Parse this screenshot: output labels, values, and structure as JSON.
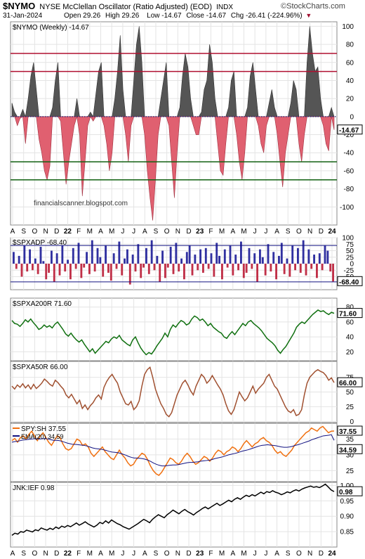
{
  "header": {
    "symbol": "$NYMO",
    "name": "NYSE McClellan Oscillator (Ratio Adjusted) (EOD)",
    "exchange": "INDX",
    "brand": "©StockCharts.com",
    "date": "31-Jan-2024",
    "open": "Open 29.26",
    "high": "High 29.26",
    "low": "Low -14.67",
    "close": "Close -14.67",
    "chg": "Chg -26.41 (-224.96%)",
    "chg_arrow": "▼"
  },
  "watermark": "financialscanner.blogspot.com",
  "x_labels": [
    "A",
    "S",
    "O",
    "N",
    "D",
    "22",
    "F",
    "M",
    "A",
    "M",
    "J",
    "J",
    "A",
    "S",
    "O",
    "N",
    "D",
    "23",
    "F",
    "M",
    "A",
    "M",
    "J",
    "J",
    "A",
    "S",
    "O",
    "N",
    "D",
    "24"
  ],
  "colors": {
    "up": "#555555",
    "down": "#e06070",
    "ob": "#b01030",
    "os": "#106010",
    "blue_bar": "#3030a0",
    "red_bar": "#c03048",
    "green_line": "#107010",
    "brown_line": "#a05030",
    "orange_line": "#f07010",
    "navy_line": "#101080"
  },
  "chart_data": [
    {
      "type": "area",
      "legend": "$NYMO (Weekly) -14.67",
      "last_value": "-14.67",
      "ylim": [
        -120,
        105
      ],
      "yticks": [
        100,
        80,
        60,
        40,
        20,
        0,
        -20,
        -40,
        -60,
        -80,
        -100
      ],
      "hlines": [
        70,
        50,
        0,
        -50,
        -70
      ],
      "values": [
        15,
        5,
        -10,
        -2,
        8,
        -30,
        20,
        45,
        60,
        30,
        -25,
        -40,
        -60,
        -70,
        -55,
        10,
        40,
        60,
        -5,
        -40,
        -75,
        -50,
        -30,
        -10,
        20,
        -20,
        -88,
        -50,
        -10,
        5,
        -5,
        25,
        50,
        60,
        -10,
        -30,
        -60,
        -40,
        20,
        50,
        90,
        30,
        -20,
        -50,
        -10,
        40,
        80,
        100,
        60,
        -20,
        -60,
        -90,
        -115,
        -70,
        -20,
        20,
        40,
        60,
        -10,
        -50,
        -90,
        -40,
        10,
        45,
        70,
        55,
        20,
        -10,
        -20,
        -20,
        5,
        30,
        40,
        80,
        60,
        20,
        -30,
        -60,
        -65,
        -30,
        10,
        40,
        50,
        -20,
        -50,
        -70,
        -40,
        10,
        45,
        60,
        30,
        -10,
        -30,
        -40,
        -10,
        15,
        30,
        10,
        -20,
        -50,
        -78,
        -40,
        -20,
        15,
        40,
        30,
        -30,
        -50,
        -20,
        60,
        100,
        70,
        50,
        55,
        20,
        -10,
        -30,
        -38,
        10,
        -14.67
      ]
    },
    {
      "type": "bar",
      "legend": "$SPXADP -68.40",
      "last_value": "-68.40",
      "ylim": [
        -100,
        100
      ],
      "yticks": [
        100,
        75,
        50,
        25,
        0,
        -25,
        -50
      ],
      "hlines": [
        70,
        -70
      ],
      "values": [
        45,
        -20,
        30,
        -50,
        70,
        -30,
        55,
        -25,
        20,
        -40,
        65,
        10,
        -60,
        -35,
        50,
        -70,
        40,
        -45,
        70,
        -30,
        15,
        -60,
        60,
        -20,
        80,
        -55,
        -15,
        45,
        -40,
        90,
        -30,
        60,
        25,
        -50,
        70,
        -35,
        -65,
        40,
        -20,
        85,
        -45,
        20,
        55,
        -80,
        35,
        -30,
        75,
        -55,
        -15,
        60,
        -40,
        90,
        -25,
        30,
        -70,
        50,
        -55,
        -15,
        65,
        -40,
        80,
        -30,
        20,
        -60,
        45,
        70,
        -45,
        35,
        -25,
        55,
        -35,
        60,
        -20,
        40,
        -50,
        80,
        30,
        -60,
        55,
        -15,
        70,
        -45,
        35,
        -25,
        85,
        -55,
        -35,
        60,
        -20,
        40,
        -70,
        55,
        25,
        -45,
        75,
        -30,
        45,
        -60,
        30,
        80,
        -40,
        20,
        -50,
        70,
        -25,
        60,
        -35,
        90,
        -45,
        55,
        -20,
        35,
        -55,
        40,
        -25,
        70,
        50,
        -30,
        -68.4
      ]
    },
    {
      "type": "line",
      "legend": "$SPXA200R 71.60",
      "last_value": "71.60",
      "ylim": [
        8,
        92
      ],
      "yticks": [
        80,
        60,
        40,
        20
      ],
      "values": [
        62,
        58,
        57,
        54,
        58,
        63,
        60,
        64,
        59,
        55,
        50,
        52,
        56,
        53,
        55,
        52,
        57,
        60,
        55,
        50,
        44,
        41,
        45,
        40,
        36,
        33,
        36,
        30,
        25,
        20,
        24,
        18,
        22,
        26,
        30,
        34,
        32,
        37,
        40,
        38,
        42,
        36,
        33,
        30,
        28,
        36,
        40,
        32,
        25,
        20,
        16,
        19,
        17,
        22,
        28,
        33,
        38,
        45,
        40,
        50,
        56,
        53,
        58,
        62,
        60,
        56,
        58,
        64,
        68,
        66,
        62,
        64,
        60,
        55,
        58,
        53,
        50,
        47,
        45,
        40,
        38,
        43,
        47,
        43,
        48,
        53,
        58,
        55,
        60,
        62,
        58,
        55,
        52,
        48,
        43,
        38,
        35,
        32,
        28,
        22,
        18,
        23,
        27,
        33,
        39,
        45,
        53,
        57,
        60,
        58,
        62,
        66,
        70,
        73,
        76,
        74,
        75,
        72,
        70,
        73,
        71.6
      ]
    },
    {
      "type": "line",
      "legend": "$SPXA50R 66.00",
      "last_value": "66.00",
      "ylim": [
        -2,
        102
      ],
      "yticks": [
        75,
        50,
        25,
        0
      ],
      "values": [
        60,
        55,
        62,
        58,
        64,
        57,
        62,
        55,
        63,
        56,
        60,
        65,
        72,
        68,
        63,
        60,
        70,
        66,
        60,
        55,
        45,
        40,
        46,
        38,
        30,
        36,
        22,
        28,
        20,
        27,
        32,
        40,
        45,
        38,
        58,
        68,
        75,
        80,
        72,
        65,
        50,
        40,
        30,
        28,
        34,
        20,
        25,
        35,
        60,
        80,
        88,
        92,
        75,
        55,
        42,
        30,
        22,
        12,
        8,
        15,
        30,
        45,
        55,
        65,
        70,
        62,
        52,
        45,
        60,
        70,
        80,
        75,
        65,
        70,
        78,
        70,
        62,
        55,
        45,
        30,
        18,
        12,
        20,
        35,
        50,
        42,
        35,
        40,
        50,
        60,
        48,
        55,
        60,
        65,
        75,
        80,
        70,
        60,
        55,
        45,
        35,
        25,
        18,
        15,
        20,
        10,
        12,
        20,
        45,
        65,
        75,
        80,
        85,
        88,
        85,
        83,
        78,
        70,
        74,
        66
      ]
    },
    {
      "type": "line",
      "legend": [
        "SPY:SH 37.55",
        "EMA(20) 34.59"
      ],
      "last_value": [
        "37.55",
        "34.59"
      ],
      "ylim": [
        21.5,
        40
      ],
      "yticks": [
        35,
        30,
        25
      ],
      "series": [
        {
          "name": "SPY:SH",
          "values": [
            34.5,
            35.2,
            34.0,
            35.5,
            36.0,
            35.0,
            36.5,
            37.5,
            36.0,
            34.5,
            36.0,
            37.0,
            35.5,
            34.0,
            33.0,
            34.5,
            36.0,
            35.5,
            33.5,
            32.0,
            31.5,
            32.0,
            33.5,
            35.0,
            34.5,
            33.0,
            33.5,
            32.5,
            30.5,
            29.5,
            30.5,
            31.5,
            32.5,
            31.0,
            30.0,
            29.0,
            28.5,
            30.0,
            31.5,
            30.0,
            29.0,
            27.5,
            26.5,
            27.0,
            28.5,
            29.5,
            30.5,
            30.0,
            28.5,
            26.5,
            25.0,
            24.0,
            23.5,
            24.5,
            26.0,
            27.5,
            29.0,
            28.5,
            27.5,
            27.0,
            28.0,
            29.5,
            30.5,
            29.5,
            28.0,
            27.0,
            27.5,
            28.5,
            29.5,
            29.0,
            28.0,
            29.0,
            30.5,
            31.5,
            31.0,
            30.0,
            31.0,
            31.5,
            32.5,
            32.0,
            31.0,
            32.0,
            33.5,
            34.5,
            33.5,
            32.5,
            33.5,
            34.0,
            35.0,
            35.5,
            34.5,
            34.0,
            33.0,
            31.5,
            30.5,
            31.0,
            30.0,
            29.5,
            30.5,
            31.5,
            33.0,
            34.0,
            35.0,
            36.0,
            37.0,
            37.5,
            38.5,
            38.0,
            37.5,
            38.5,
            39.0,
            38.0,
            37.0,
            37.5,
            37.55
          ]
        },
        {
          "name": "EMA(20)",
          "values": [
            34.0,
            34.2,
            34.3,
            34.5,
            34.7,
            34.8,
            34.9,
            35.0,
            35.1,
            35.1,
            35.0,
            35.1,
            35.2,
            35.0,
            34.8,
            34.6,
            34.6,
            34.5,
            34.3,
            34.0,
            33.7,
            33.5,
            33.3,
            33.3,
            33.2,
            33.1,
            33.0,
            32.8,
            32.5,
            32.2,
            32.0,
            31.9,
            31.8,
            31.6,
            31.4,
            31.1,
            30.9,
            30.8,
            30.7,
            30.5,
            30.2,
            29.9,
            29.5,
            29.2,
            29.0,
            29.0,
            28.9,
            28.8,
            28.6,
            28.3,
            27.9,
            27.4,
            27.0,
            26.7,
            26.5,
            26.5,
            26.6,
            26.7,
            26.8,
            26.8,
            26.9,
            27.1,
            27.3,
            27.5,
            27.6,
            27.6,
            27.7,
            27.8,
            28.0,
            28.1,
            28.2,
            28.3,
            28.5,
            28.8,
            29.0,
            29.2,
            29.4,
            29.7,
            30.0,
            30.2,
            30.4,
            30.6,
            30.9,
            31.2,
            31.4,
            31.6,
            31.9,
            32.2,
            32.5,
            32.8,
            33.0,
            33.1,
            33.2,
            33.1,
            33.0,
            32.9,
            32.7,
            32.5,
            32.4,
            32.4,
            32.5,
            32.7,
            33.0,
            33.2,
            33.5,
            33.8,
            34.1,
            34.4,
            34.8,
            35.1,
            35.4,
            35.7,
            36.0,
            36.1,
            36.2,
            36.4,
            34.59
          ]
        }
      ]
    },
    {
      "type": "line",
      "legend": "JNK:IEF 0.98",
      "last_value": "0.98",
      "ylim": [
        0.8,
        1.01
      ],
      "yticks": [
        "1.00",
        "0.95",
        "0.90",
        "0.85"
      ],
      "values": [
        0.838,
        0.845,
        0.842,
        0.85,
        0.848,
        0.855,
        0.852,
        0.849,
        0.856,
        0.853,
        0.862,
        0.858,
        0.855,
        0.861,
        0.857,
        0.865,
        0.86,
        0.868,
        0.864,
        0.87,
        0.866,
        0.872,
        0.878,
        0.871,
        0.876,
        0.882,
        0.875,
        0.87,
        0.865,
        0.871,
        0.88,
        0.876,
        0.885,
        0.878,
        0.888,
        0.882,
        0.876,
        0.872,
        0.866,
        0.862,
        0.858,
        0.864,
        0.87,
        0.876,
        0.883,
        0.89,
        0.885,
        0.879,
        0.89,
        0.898,
        0.905,
        0.9,
        0.895,
        0.905,
        0.912,
        0.92,
        0.914,
        0.908,
        0.916,
        0.922,
        0.915,
        0.91,
        0.904,
        0.912,
        0.918,
        0.925,
        0.93,
        0.924,
        0.93,
        0.936,
        0.942,
        0.935,
        0.94,
        0.946,
        0.952,
        0.947,
        0.955,
        0.96,
        0.955,
        0.962,
        0.968,
        0.964,
        0.97,
        0.966,
        0.972,
        0.978,
        0.973,
        0.98,
        0.977,
        0.983,
        0.978,
        0.975,
        0.97,
        0.974,
        0.979,
        0.976,
        0.982,
        0.986,
        0.982,
        0.988,
        0.992,
        0.995,
        0.998,
        0.994,
        0.996,
        0.993,
        0.998,
        1.004,
        0.995,
        0.985,
        0.98
      ]
    }
  ]
}
